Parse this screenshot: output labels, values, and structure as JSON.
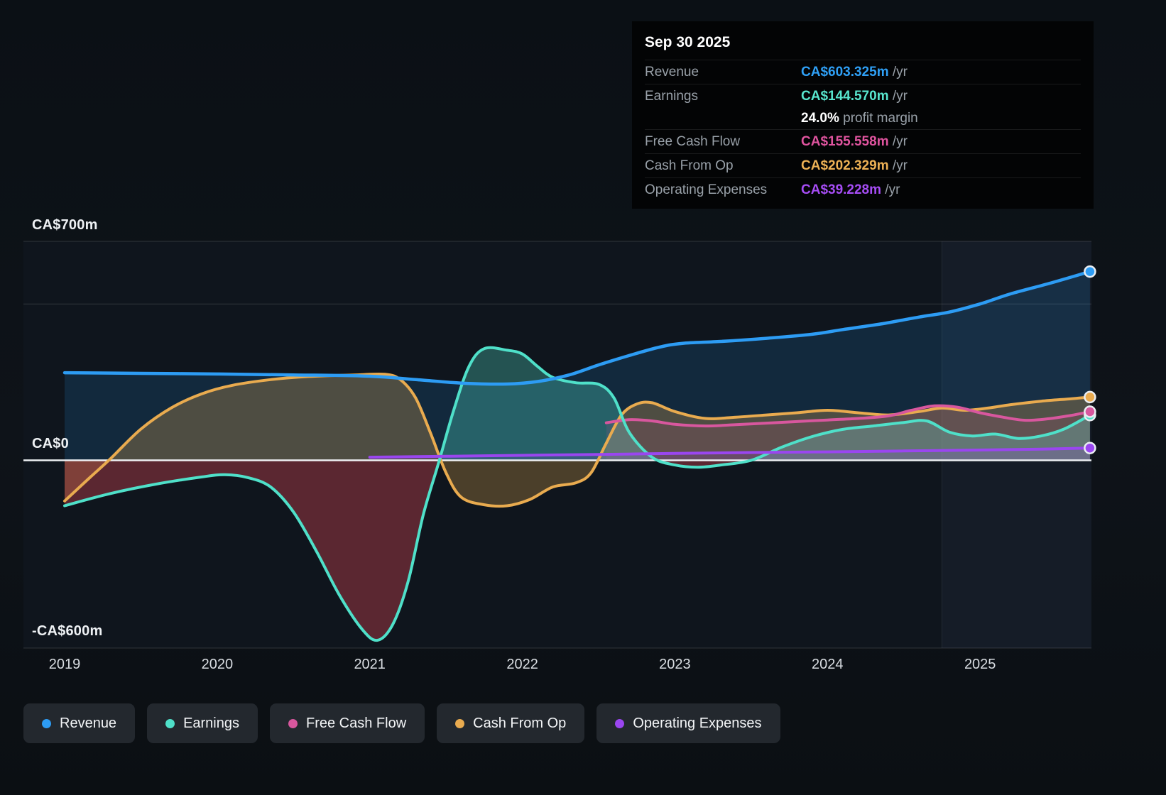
{
  "tooltip": {
    "date": "Sep 30 2025",
    "rows": [
      {
        "label": "Revenue",
        "value": "CA$603.325m",
        "suffix": " /yr",
        "color": "#2fa0f6"
      },
      {
        "label": "Earnings",
        "value": "CA$144.570m",
        "suffix": " /yr",
        "color": "#58e6ce"
      },
      {
        "label": "",
        "value": "24.0%",
        "suffix": " profit margin",
        "color": "#ffffff"
      },
      {
        "label": "Free Cash Flow",
        "value": "CA$155.558m",
        "suffix": " /yr",
        "color": "#e0549f"
      },
      {
        "label": "Cash From Op",
        "value": "CA$202.329m",
        "suffix": " /yr",
        "color": "#edb155"
      },
      {
        "label": "Operating Expenses",
        "value": "CA$39.228m",
        "suffix": " /yr",
        "color": "#a64df5"
      }
    ]
  },
  "legend": [
    {
      "label": "Revenue",
      "color": "#2d9cf4"
    },
    {
      "label": "Earnings",
      "color": "#4fe0c9"
    },
    {
      "label": "Free Cash Flow",
      "color": "#d8579e"
    },
    {
      "label": "Cash From Op",
      "color": "#e9ab4f"
    },
    {
      "label": "Operating Expenses",
      "color": "#9a46f0"
    }
  ],
  "chart_data": {
    "type": "area",
    "unit": "CA$m",
    "x_domain": [
      2018.73,
      2025.73
    ],
    "y_domain": [
      -600,
      700
    ],
    "x_ticks": [
      2019,
      2020,
      2021,
      2022,
      2023,
      2024,
      2025
    ],
    "y_axis_labels": [
      "CA$700m",
      "CA$0",
      "-CA$600m"
    ],
    "y_gridlines": [
      {
        "v": 700,
        "major": false
      },
      {
        "v": 500,
        "major": false
      },
      {
        "v": 0,
        "major": true
      },
      {
        "v": -600,
        "major": false
      }
    ],
    "forecast_start": 2024.75,
    "series": [
      {
        "name": "Revenue",
        "color": "#2d9cf4",
        "fill": "rgba(33,140,220,0.17)",
        "width": 4.5,
        "line_order": 4,
        "points": [
          [
            2019,
            280
          ],
          [
            2019.5,
            278
          ],
          [
            2020,
            276
          ],
          [
            2020.5,
            273
          ],
          [
            2021,
            269
          ],
          [
            2021.3,
            258
          ],
          [
            2021.6,
            247
          ],
          [
            2021.9,
            244
          ],
          [
            2022.1,
            252
          ],
          [
            2022.3,
            272
          ],
          [
            2022.5,
            305
          ],
          [
            2022.7,
            335
          ],
          [
            2022.9,
            362
          ],
          [
            2023.05,
            374
          ],
          [
            2023.3,
            380
          ],
          [
            2023.6,
            390
          ],
          [
            2023.9,
            403
          ],
          [
            2024.1,
            418
          ],
          [
            2024.35,
            436
          ],
          [
            2024.6,
            458
          ],
          [
            2024.8,
            474
          ],
          [
            2025,
            500
          ],
          [
            2025.2,
            532
          ],
          [
            2025.45,
            565
          ],
          [
            2025.72,
            603.325
          ]
        ]
      },
      {
        "name": "Cash From Op",
        "color": "#e9ab4f",
        "fill": "rgba(233,171,79,0.28)",
        "width": 4,
        "line_order": 1,
        "points": [
          [
            2019,
            -130
          ],
          [
            2019.15,
            -62
          ],
          [
            2019.3,
            5
          ],
          [
            2019.5,
            100
          ],
          [
            2019.7,
            168
          ],
          [
            2019.9,
            213
          ],
          [
            2020.1,
            240
          ],
          [
            2020.35,
            258
          ],
          [
            2020.6,
            268
          ],
          [
            2020.9,
            273
          ],
          [
            2021.1,
            275
          ],
          [
            2021.2,
            258
          ],
          [
            2021.3,
            200
          ],
          [
            2021.4,
            85
          ],
          [
            2021.5,
            -40
          ],
          [
            2021.6,
            -118
          ],
          [
            2021.75,
            -142
          ],
          [
            2021.9,
            -145
          ],
          [
            2022.05,
            -125
          ],
          [
            2022.2,
            -85
          ],
          [
            2022.35,
            -72
          ],
          [
            2022.45,
            -40
          ],
          [
            2022.55,
            55
          ],
          [
            2022.65,
            145
          ],
          [
            2022.75,
            180
          ],
          [
            2022.85,
            184
          ],
          [
            2023,
            156
          ],
          [
            2023.2,
            134
          ],
          [
            2023.4,
            138
          ],
          [
            2023.6,
            145
          ],
          [
            2023.8,
            152
          ],
          [
            2024,
            160
          ],
          [
            2024.2,
            152
          ],
          [
            2024.4,
            145
          ],
          [
            2024.6,
            156
          ],
          [
            2024.75,
            167
          ],
          [
            2024.9,
            160
          ],
          [
            2025.05,
            167
          ],
          [
            2025.2,
            178
          ],
          [
            2025.4,
            189
          ],
          [
            2025.6,
            197
          ],
          [
            2025.72,
            202.329
          ]
        ]
      },
      {
        "name": "Earnings",
        "color": "#4fe0c9",
        "fill": "rgba(87,228,205,0.30)",
        "fill_negative": "rgba(205,68,80,0.40)",
        "width": 4,
        "line_order": 3,
        "points": [
          [
            2019,
            -145
          ],
          [
            2019.3,
            -106
          ],
          [
            2019.6,
            -76
          ],
          [
            2019.9,
            -53
          ],
          [
            2020.05,
            -46
          ],
          [
            2020.2,
            -55
          ],
          [
            2020.35,
            -85
          ],
          [
            2020.5,
            -165
          ],
          [
            2020.65,
            -290
          ],
          [
            2020.8,
            -430
          ],
          [
            2020.95,
            -540
          ],
          [
            2021.05,
            -575
          ],
          [
            2021.15,
            -525
          ],
          [
            2021.25,
            -390
          ],
          [
            2021.35,
            -175
          ],
          [
            2021.45,
            -10
          ],
          [
            2021.55,
            160
          ],
          [
            2021.65,
            300
          ],
          [
            2021.75,
            357
          ],
          [
            2021.9,
            352
          ],
          [
            2022,
            340
          ],
          [
            2022.1,
            300
          ],
          [
            2022.2,
            265
          ],
          [
            2022.35,
            248
          ],
          [
            2022.5,
            243
          ],
          [
            2022.6,
            200
          ],
          [
            2022.7,
            90
          ],
          [
            2022.85,
            10
          ],
          [
            2023,
            -15
          ],
          [
            2023.15,
            -22
          ],
          [
            2023.3,
            -15
          ],
          [
            2023.5,
            0
          ],
          [
            2023.7,
            42
          ],
          [
            2023.9,
            76
          ],
          [
            2024.1,
            99
          ],
          [
            2024.3,
            110
          ],
          [
            2024.5,
            121
          ],
          [
            2024.65,
            126
          ],
          [
            2024.8,
            90
          ],
          [
            2024.95,
            78
          ],
          [
            2025.1,
            84
          ],
          [
            2025.25,
            70
          ],
          [
            2025.4,
            78
          ],
          [
            2025.55,
            100
          ],
          [
            2025.72,
            144.57
          ]
        ]
      },
      {
        "name": "Free Cash Flow",
        "color": "#d8579e",
        "fill": "rgba(216,87,158,0.13)",
        "width": 4,
        "line_order": 2,
        "points": [
          [
            2022.55,
            120
          ],
          [
            2022.7,
            130
          ],
          [
            2022.85,
            126
          ],
          [
            2023,
            115
          ],
          [
            2023.2,
            110
          ],
          [
            2023.4,
            114
          ],
          [
            2023.6,
            119
          ],
          [
            2023.8,
            124
          ],
          [
            2024,
            129
          ],
          [
            2024.2,
            134
          ],
          [
            2024.4,
            142
          ],
          [
            2024.55,
            160
          ],
          [
            2024.7,
            174
          ],
          [
            2024.85,
            170
          ],
          [
            2025,
            152
          ],
          [
            2025.15,
            138
          ],
          [
            2025.3,
            128
          ],
          [
            2025.45,
            133
          ],
          [
            2025.6,
            144
          ],
          [
            2025.72,
            155.558
          ]
        ]
      },
      {
        "name": "Operating Expenses",
        "color": "#9a46f0",
        "fill": "rgba(154,70,240,0.16)",
        "width": 4,
        "line_order": 5,
        "points": [
          [
            2021,
            10
          ],
          [
            2021.5,
            13
          ],
          [
            2022,
            16
          ],
          [
            2022.5,
            19
          ],
          [
            2023,
            22
          ],
          [
            2023.5,
            25
          ],
          [
            2024,
            27
          ],
          [
            2024.5,
            30
          ],
          [
            2025,
            33
          ],
          [
            2025.4,
            36
          ],
          [
            2025.72,
            39.228
          ]
        ]
      }
    ]
  }
}
